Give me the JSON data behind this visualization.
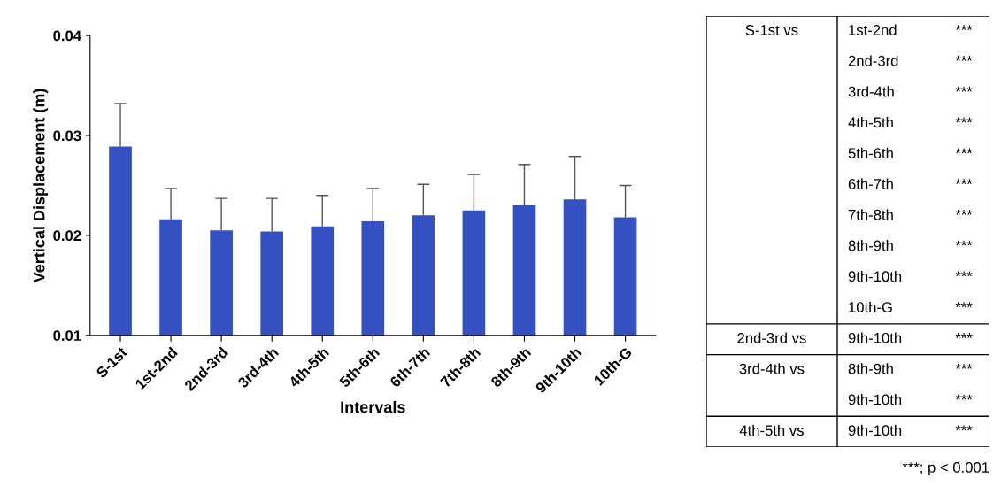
{
  "chart_data": [
    {
      "type": "bar",
      "xlabel": "Intervals",
      "ylabel": "Vertical Displacement (m)",
      "categories": [
        "S-1st",
        "1st-2nd",
        "2nd-3rd",
        "3rd-4th",
        "4th-5th",
        "5th-6th",
        "6th-7th",
        "7th-8th",
        "8th-9th",
        "9th-10th",
        "10th-G"
      ],
      "values": [
        0.0289,
        0.0216,
        0.0205,
        0.0204,
        0.0209,
        0.0214,
        0.022,
        0.0225,
        0.023,
        0.0236,
        0.0218
      ],
      "errors": [
        [
          0.0289,
          0.0332
        ],
        [
          0.0216,
          0.0247
        ],
        [
          0.0205,
          0.0237
        ],
        [
          0.0204,
          0.0237
        ],
        [
          0.0209,
          0.024
        ],
        [
          0.0214,
          0.0247
        ],
        [
          0.022,
          0.0251
        ],
        [
          0.0225,
          0.0261
        ],
        [
          0.023,
          0.0271
        ],
        [
          0.0236,
          0.0279
        ],
        [
          0.0218,
          0.025
        ]
      ],
      "color": "#3550c0",
      "ylim": [
        0.01,
        0.04
      ],
      "yticks": [
        0.01,
        0.02,
        0.03,
        0.04
      ],
      "grid": false,
      "legend": false
    },
    {
      "type": "other",
      "annotations": [
        "S-1st vs\t1st-2nd\t***",
        "\t2nd-3rd\t***",
        "\t3rd-4th\t***",
        "\t4th-5th\t***",
        "\t5th-6th\t***",
        "\t6th-7th\t***",
        "\t7th-8th\t***",
        "\t8th-9th\t***",
        "\t9th-10th\t***",
        "\t10th-G\t***",
        "2nd-3rd vs\t9th-10th\t***",
        "3rd-4th vs\t8th-9th\t***",
        "\t9th-10th\t***",
        "4th-5th vs\t9th-10th\t***",
        "***; p < 0.001"
      ]
    }
  ]
}
